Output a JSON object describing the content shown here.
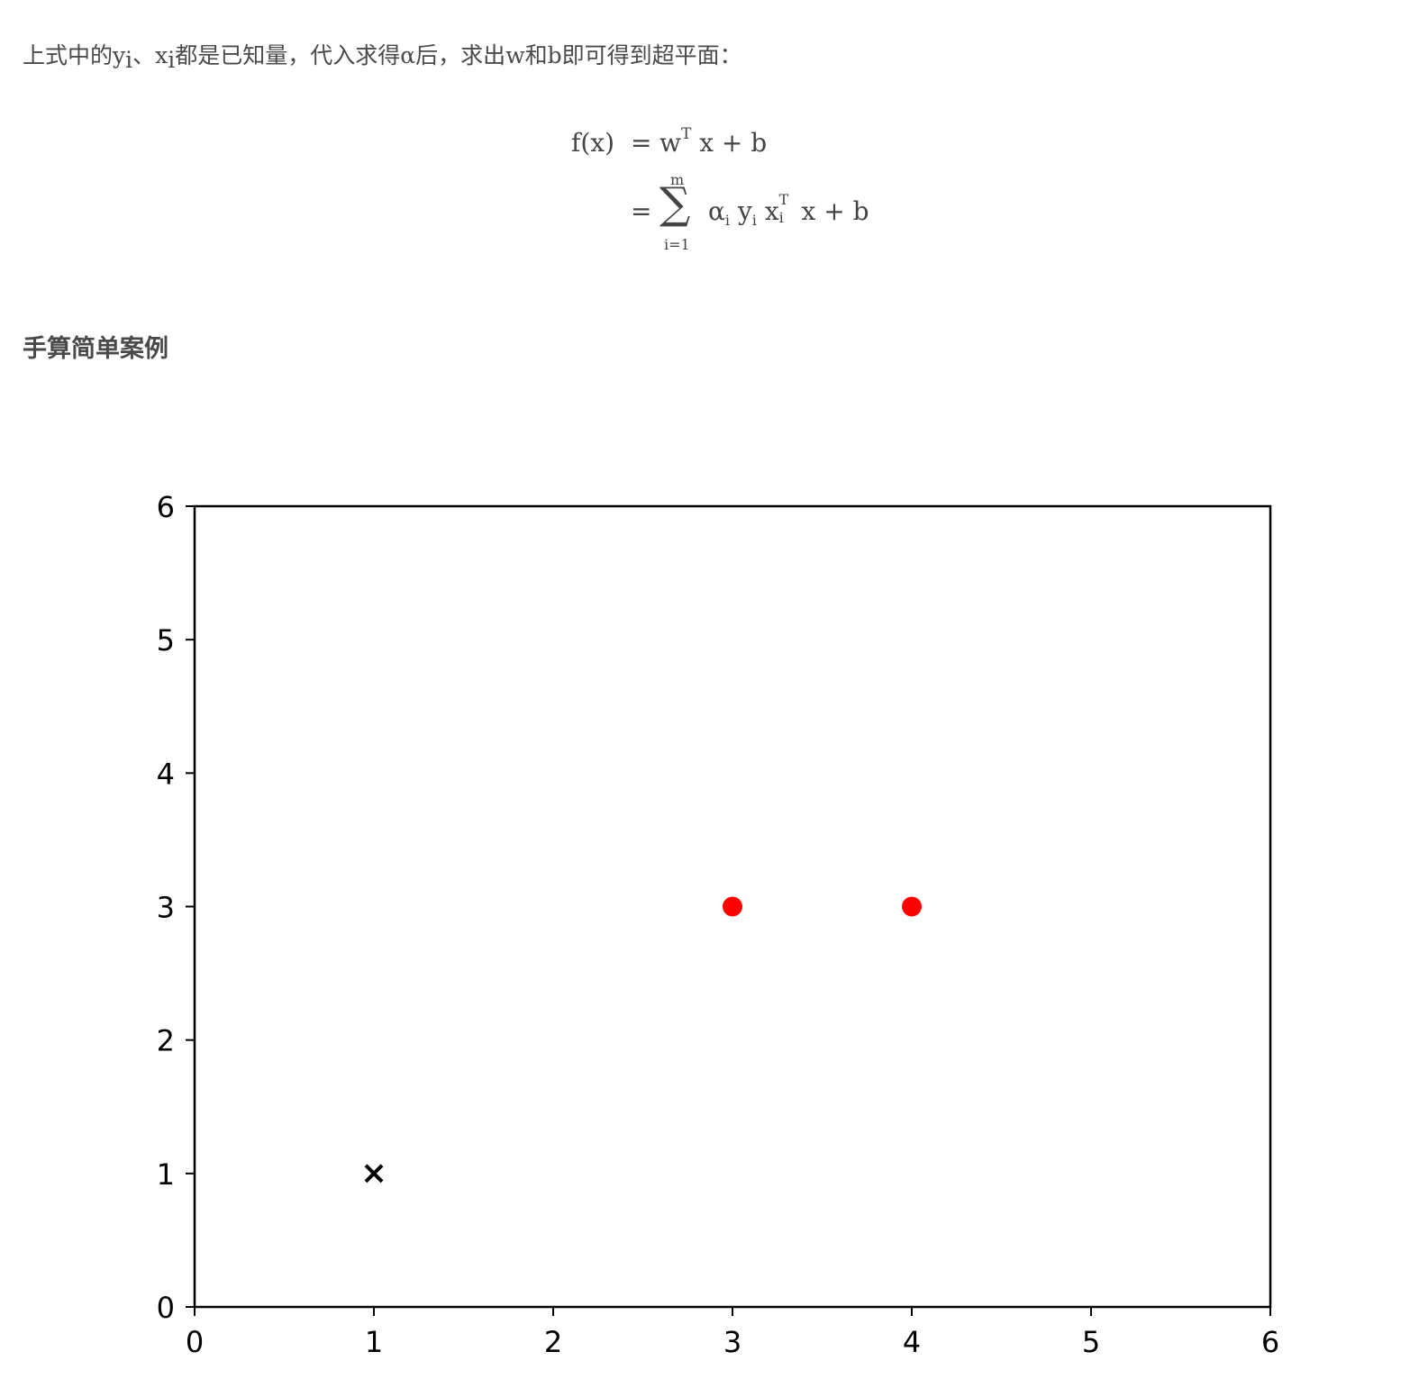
{
  "intro": {
    "t1": "上式中的",
    "y": "y",
    "y_sub": "i",
    "sep": "、",
    "x": "x",
    "x_sub": "i",
    "t2": "都是已知量，代入求得",
    "alpha": "α",
    "t3": "后，求出",
    "w": "w",
    "t4": "和",
    "b": "b",
    "t5": "即可得到超平面："
  },
  "formula": {
    "lhs": "f(x)",
    "eq": "=",
    "rhs1": "w",
    "rhs1_sup": "T",
    "rhs1_tail": "x + b",
    "sum_top": "m",
    "sigma": "∑",
    "sum_bottom": "i=1",
    "alpha": "α",
    "alpha_sub": "i",
    "y": "y",
    "y_sub": "i",
    "x": "x",
    "x_sup": "T",
    "x_sub": "i",
    "tail": "x + b"
  },
  "heading": "手算简单案例",
  "chart_data": {
    "type": "scatter",
    "xlim": [
      0,
      6
    ],
    "ylim": [
      0,
      6
    ],
    "xticks": [
      "0",
      "1",
      "2",
      "3",
      "4",
      "5",
      "6"
    ],
    "yticks": [
      "0",
      "1",
      "2",
      "3",
      "4",
      "5",
      "6"
    ],
    "grid": false,
    "series": [
      {
        "marker": "circle",
        "color": "#ff0000",
        "points": [
          [
            3,
            3
          ],
          [
            4,
            3
          ]
        ]
      },
      {
        "marker": "x",
        "color": "#000000",
        "points": [
          [
            1,
            1
          ]
        ]
      }
    ]
  }
}
